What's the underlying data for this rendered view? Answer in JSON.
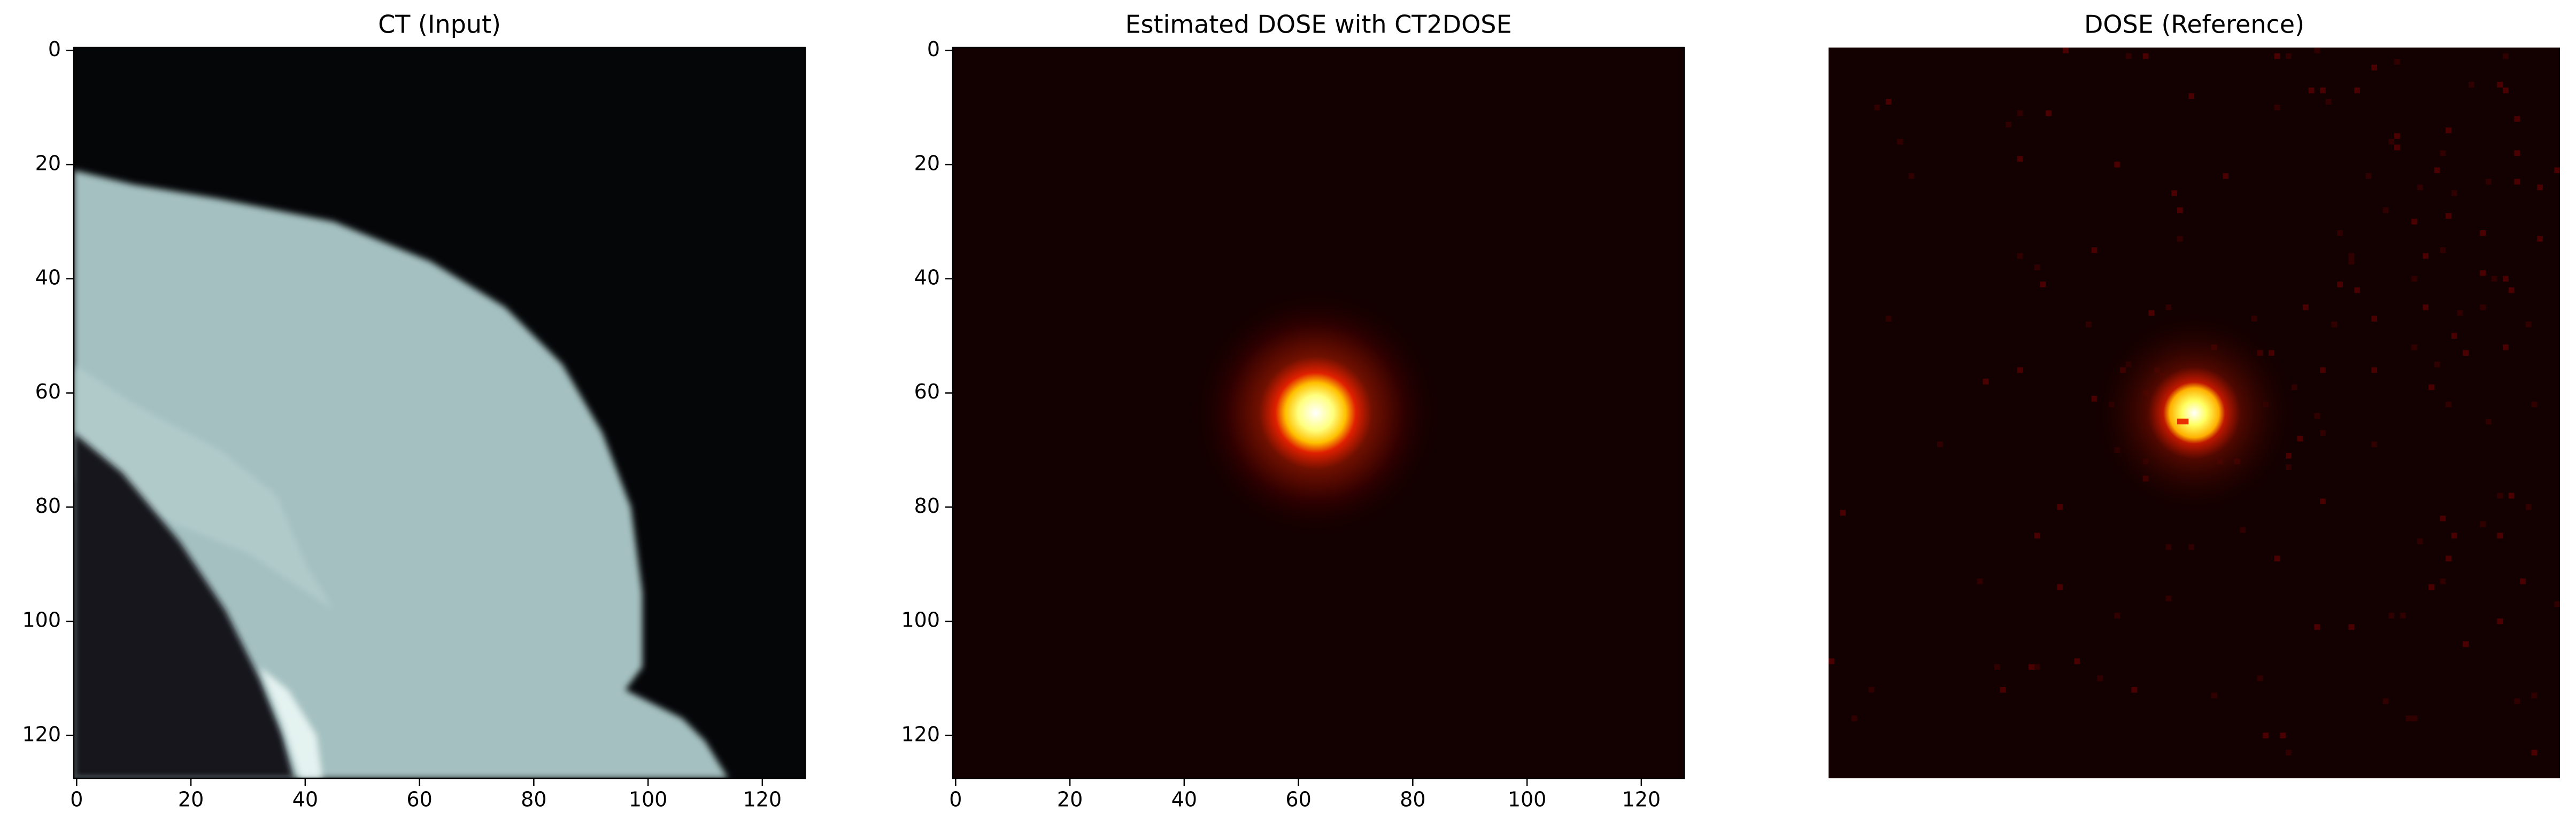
{
  "chart_data": [
    {
      "type": "image",
      "title": "CT (Input)",
      "xlim": [
        -0.5,
        127.5
      ],
      "ylim": [
        127.5,
        -0.5
      ],
      "xticks": [
        0,
        20,
        40,
        60,
        80,
        100,
        120
      ],
      "yticks": [
        0,
        20,
        40,
        60,
        80,
        100,
        120
      ]
    },
    {
      "type": "image",
      "title": "Estimated DOSE with CT2DOSE",
      "xlim": [
        -0.5,
        127.5
      ],
      "ylim": [
        127.5,
        -0.5
      ],
      "xticks": [
        0,
        20,
        40,
        60,
        80,
        100,
        120
      ],
      "yticks": [
        0,
        20,
        40,
        60,
        80,
        100,
        120
      ]
    },
    {
      "type": "image",
      "title": "DOSE (Reference)",
      "xlim": [
        -0.5,
        127.5
      ],
      "ylim": [
        127.5,
        -0.5
      ]
    }
  ]
}
